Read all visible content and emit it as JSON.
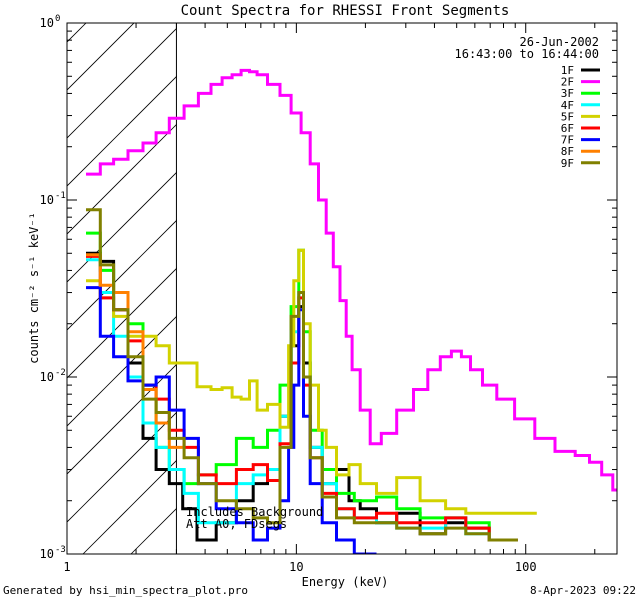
{
  "chart_data": {
    "type": "line",
    "title": "Count Spectra for RHESSI Front Segments",
    "xlabel": "Energy (keV)",
    "ylabel": "counts cm⁻² s⁻¹ keV⁻¹",
    "xscale": "log",
    "yscale": "log",
    "xlim": [
      1,
      250
    ],
    "ylim": [
      0.001,
      1
    ],
    "x_ticks": [
      {
        "value": 1,
        "label": "1"
      },
      {
        "value": 10,
        "label": "10"
      },
      {
        "value": 100,
        "label": "100"
      }
    ],
    "y_ticks": [
      {
        "value": 0.001,
        "base": "10",
        "exp": "-3"
      },
      {
        "value": 0.01,
        "base": "10",
        "exp": "-2"
      },
      {
        "value": 0.1,
        "base": "10",
        "exp": "-1"
      },
      {
        "value": 1,
        "base": "10",
        "exp": "0"
      }
    ],
    "hatched_region_max_energy": 3,
    "date": "26-Jun-2002",
    "time_range": "16:43:00 to 16:44:00",
    "annotation_lines": [
      "Includes Background",
      "Att A0, FDsegs"
    ],
    "footer_left": "Generated by hsi_min_spectra_plot.pro",
    "footer_right": "8-Apr-2023 09:22",
    "series": [
      {
        "name": "1F",
        "color": "#000000",
        "x": [
          1.3,
          1.5,
          1.7,
          2.0,
          2.3,
          2.6,
          3.0,
          3.4,
          4,
          5,
          6,
          7,
          8,
          9,
          10,
          10.5,
          11,
          12,
          14,
          16,
          18,
          20,
          25,
          30,
          40,
          50,
          60,
          80
        ],
        "y": [
          0.05,
          0.045,
          0.024,
          0.012,
          0.0045,
          0.003,
          0.0025,
          0.0018,
          0.0012,
          0.0015,
          0.002,
          0.0025,
          0.003,
          0.006,
          0.015,
          0.025,
          0.012,
          0.004,
          0.0025,
          0.003,
          0.002,
          0.0018,
          0.0015,
          0.0017,
          0.0013,
          0.0015,
          0.0014,
          0.0012
        ]
      },
      {
        "name": "2F",
        "color": "#ff00ff",
        "x": [
          1.3,
          1.5,
          1.7,
          2.0,
          2.3,
          2.6,
          3.0,
          3.5,
          4.0,
          4.5,
          5.0,
          5.5,
          6.0,
          6.5,
          7.0,
          8.0,
          9.0,
          10,
          11,
          12,
          13,
          14,
          15,
          16,
          17,
          18,
          20,
          22,
          25,
          30,
          35,
          40,
          45,
          50,
          55,
          60,
          70,
          80,
          100,
          120,
          150,
          180,
          200,
          230,
          250
        ],
        "y": [
          0.14,
          0.16,
          0.17,
          0.19,
          0.21,
          0.24,
          0.29,
          0.34,
          0.4,
          0.45,
          0.49,
          0.51,
          0.54,
          0.53,
          0.51,
          0.45,
          0.39,
          0.31,
          0.24,
          0.16,
          0.1,
          0.065,
          0.042,
          0.027,
          0.017,
          0.011,
          0.0065,
          0.0042,
          0.0048,
          0.0065,
          0.0085,
          0.011,
          0.013,
          0.014,
          0.013,
          0.011,
          0.009,
          0.0075,
          0.0058,
          0.0045,
          0.0038,
          0.0036,
          0.0033,
          0.0028,
          0.0023
        ]
      },
      {
        "name": "3F",
        "color": "#00ff00",
        "x": [
          1.3,
          1.5,
          1.7,
          2.0,
          2.3,
          2.6,
          3.0,
          3.5,
          4,
          5,
          6,
          7,
          8,
          9,
          10,
          10.5,
          11,
          12,
          14,
          16,
          20,
          25,
          30,
          40,
          50,
          60,
          80
        ],
        "y": [
          0.065,
          0.04,
          0.03,
          0.02,
          0.009,
          0.004,
          0.003,
          0.0025,
          0.0028,
          0.0032,
          0.0045,
          0.004,
          0.005,
          0.009,
          0.025,
          0.052,
          0.018,
          0.005,
          0.003,
          0.0022,
          0.002,
          0.0021,
          0.0018,
          0.0016,
          0.0016,
          0.0015,
          0.0012
        ]
      },
      {
        "name": "4F",
        "color": "#00ffff",
        "x": [
          1.3,
          1.5,
          1.7,
          2.0,
          2.3,
          2.6,
          3.0,
          3.5,
          4,
          5,
          6,
          7,
          8,
          9,
          10,
          10.5,
          11,
          12,
          14,
          16,
          20,
          25,
          30,
          40,
          50,
          60,
          80
        ],
        "y": [
          0.046,
          0.03,
          0.017,
          0.01,
          0.0055,
          0.004,
          0.003,
          0.0022,
          0.0015,
          0.0015,
          0.0025,
          0.0028,
          0.003,
          0.006,
          0.018,
          0.03,
          0.01,
          0.004,
          0.0025,
          0.0018,
          0.0016,
          0.0015,
          0.0014,
          0.0014,
          0.0016,
          0.0013,
          0.0012
        ]
      },
      {
        "name": "5F",
        "color": "#d2d200",
        "x": [
          1.3,
          1.5,
          1.7,
          2.0,
          2.3,
          2.6,
          3.0,
          3.4,
          4.0,
          4.5,
          5.0,
          5.5,
          6.0,
          6.5,
          7.0,
          8.0,
          9.0,
          9.5,
          10,
          10.5,
          11,
          12,
          13,
          14,
          16,
          18,
          20,
          25,
          30,
          40,
          50,
          60,
          80,
          100
        ],
        "y": [
          0.035,
          0.028,
          0.022,
          0.017,
          0.017,
          0.015,
          0.012,
          0.012,
          0.0088,
          0.0085,
          0.0087,
          0.0077,
          0.0075,
          0.0095,
          0.0065,
          0.007,
          0.0052,
          0.015,
          0.035,
          0.052,
          0.02,
          0.009,
          0.005,
          0.004,
          0.0028,
          0.0032,
          0.0025,
          0.0022,
          0.0027,
          0.002,
          0.0018,
          0.0017,
          0.0017,
          0.0017
        ]
      },
      {
        "name": "6F",
        "color": "#ff0000",
        "x": [
          1.3,
          1.5,
          1.7,
          2.0,
          2.3,
          2.6,
          3.0,
          3.5,
          4,
          5,
          6,
          7,
          8,
          9,
          10,
          10.5,
          11,
          12,
          14,
          16,
          20,
          25,
          30,
          40,
          50,
          60,
          80
        ],
        "y": [
          0.048,
          0.028,
          0.024,
          0.016,
          0.009,
          0.0075,
          0.005,
          0.004,
          0.0028,
          0.0025,
          0.003,
          0.0032,
          0.0026,
          0.0042,
          0.012,
          0.028,
          0.009,
          0.0035,
          0.0022,
          0.0018,
          0.0016,
          0.0017,
          0.0015,
          0.0015,
          0.0016,
          0.0014,
          0.0012
        ]
      },
      {
        "name": "7F",
        "color": "#0000ff",
        "x": [
          1.3,
          1.5,
          1.7,
          2.0,
          2.3,
          2.6,
          3.0,
          3.5,
          4,
          5,
          6,
          7,
          8,
          9,
          9.5,
          10,
          10.5,
          11,
          12,
          14,
          16,
          20
        ],
        "y": [
          0.032,
          0.017,
          0.013,
          0.0095,
          0.009,
          0.01,
          0.0065,
          0.0045,
          0.0025,
          0.0018,
          0.0015,
          0.0012,
          0.0014,
          0.002,
          0.004,
          0.009,
          0.024,
          0.006,
          0.0025,
          0.0015,
          0.0012,
          0.001
        ]
      },
      {
        "name": "8F",
        "color": "#ff8000",
        "x": [
          1.3,
          1.5,
          1.7,
          2.0,
          2.3,
          2.6,
          3.0
        ],
        "y": [
          0.049,
          0.033,
          0.03,
          0.018,
          0.0085,
          0.0055,
          0.004
        ]
      },
      {
        "name": "9F",
        "color": "#808000",
        "x": [
          1.3,
          1.5,
          1.7,
          2.0,
          2.3,
          2.6,
          3.0,
          3.5,
          4,
          5,
          6,
          7,
          8,
          9,
          10,
          10.5,
          11,
          12,
          14,
          16,
          20,
          25,
          30,
          40,
          50,
          60,
          80
        ],
        "y": [
          0.088,
          0.043,
          0.024,
          0.013,
          0.0075,
          0.0063,
          0.0045,
          0.0035,
          0.0025,
          0.002,
          0.0018,
          0.0016,
          0.0015,
          0.004,
          0.022,
          0.03,
          0.01,
          0.0035,
          0.0021,
          0.0016,
          0.0015,
          0.0015,
          0.0014,
          0.0013,
          0.0014,
          0.0013,
          0.0012
        ]
      }
    ]
  }
}
